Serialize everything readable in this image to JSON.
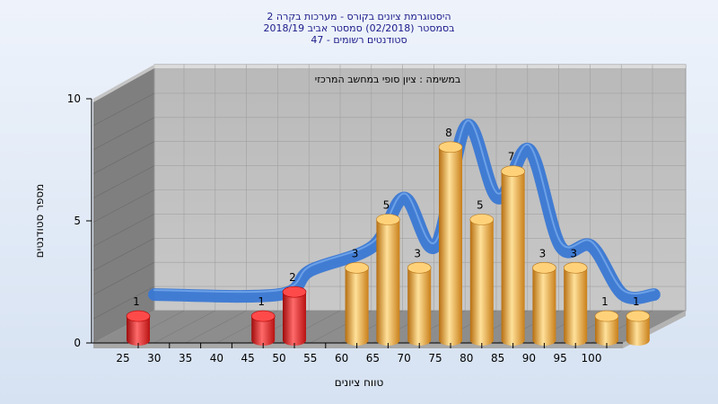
{
  "chart_data": {
    "type": "bar",
    "title_lines": [
      "היסטוגרמת ציונים בקורס - מערכות בקרה 2",
      "בסמסטר  (02/2018)  סמסטר אביב 2018/19",
      "סטודנטים רשומים - 47"
    ],
    "annotation": "במשימה : ציון סופי במחשב המרכזי",
    "xlabel": "טווח ציונים",
    "ylabel": "מספר סטודנטים",
    "x_ticks": [
      25,
      30,
      35,
      40,
      45,
      50,
      55,
      60,
      65,
      70,
      75,
      80,
      85,
      90,
      95,
      100
    ],
    "y_ticks": [
      0,
      5,
      10
    ],
    "ylim": [
      0,
      10
    ],
    "bars": [
      {
        "x": 25,
        "value": 1,
        "color": "#d81c1c"
      },
      {
        "x": 45,
        "value": 1,
        "color": "#d81c1c"
      },
      {
        "x": 50,
        "value": 2,
        "color": "#d81c1c"
      },
      {
        "x": 60,
        "value": 3,
        "color": "#e8a23a"
      },
      {
        "x": 65,
        "value": 5,
        "color": "#e8a23a"
      },
      {
        "x": 70,
        "value": 3,
        "color": "#e8a23a"
      },
      {
        "x": 75,
        "value": 8,
        "color": "#e8a23a"
      },
      {
        "x": 80,
        "value": 5,
        "color": "#e8a23a"
      },
      {
        "x": 85,
        "value": 7,
        "color": "#e8a23a"
      },
      {
        "x": 90,
        "value": 3,
        "color": "#e8a23a"
      },
      {
        "x": 95,
        "value": 3,
        "color": "#e8a23a"
      },
      {
        "x": 100,
        "value": 1,
        "color": "#e8a23a"
      },
      {
        "x": 105,
        "value": 1,
        "color": "#e8a23a"
      }
    ],
    "curve_color": "#3a78d4",
    "grid": true
  }
}
